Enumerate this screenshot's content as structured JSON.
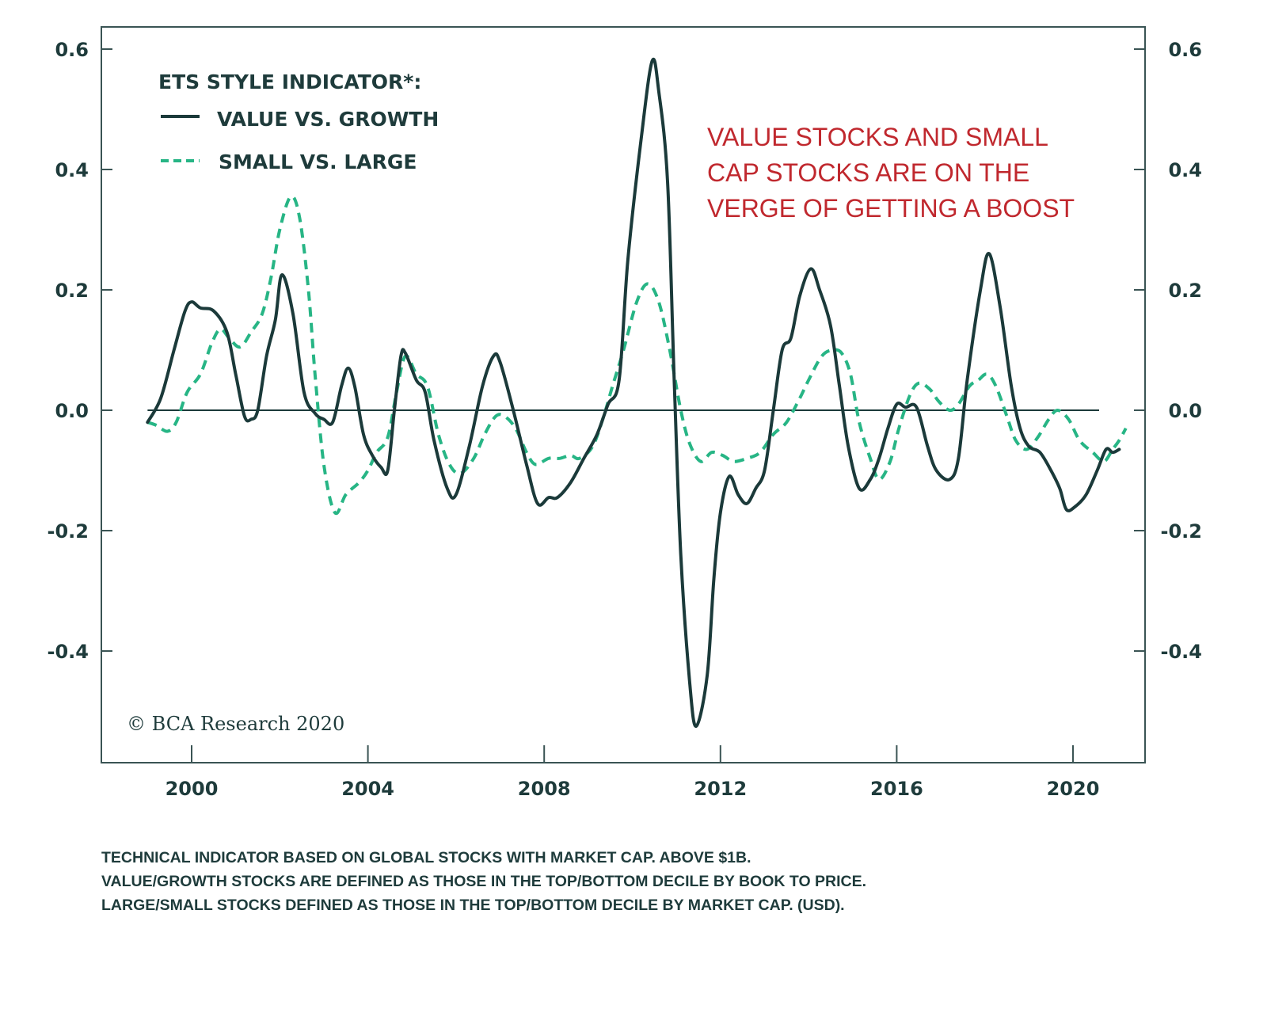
{
  "chart_data": {
    "type": "line",
    "title": "",
    "legend_title": "ETS STYLE INDICATOR*:",
    "legend_position": "top-left",
    "xlabel": "",
    "ylabel": "",
    "xlim": [
      1998.0,
      2021.7
    ],
    "ylim": [
      -0.56,
      0.64
    ],
    "x_ticks": [
      2000,
      2004,
      2008,
      2012,
      2016,
      2020
    ],
    "x_tick_labels": [
      "2000",
      "2004",
      "2008",
      "2012",
      "2016",
      "2020"
    ],
    "y_ticks": [
      0.6,
      0.4,
      0.2,
      0.0,
      -0.2,
      -0.4
    ],
    "y_tick_labels": [
      "0.6",
      "0.4",
      "0.2",
      "0.0",
      "-0.2",
      "-0.4"
    ],
    "y2_tick_labels": [
      "0.6",
      "0.4",
      "0.2",
      "0.0",
      "-0.2",
      "-0.4"
    ],
    "zero_line": true,
    "grid": false,
    "annotation": [
      "VALUE STOCKS AND SMALL",
      "CAP STOCKS ARE ON THE",
      "VERGE OF GETTING A BOOST"
    ],
    "copyright": "© BCA Research 2020",
    "series": [
      {
        "name": "VALUE VS. GROWTH",
        "style": "solid",
        "color": "#1b3a3a",
        "points": [
          [
            1999.0,
            -0.02
          ],
          [
            1999.3,
            0.02
          ],
          [
            1999.6,
            0.1
          ],
          [
            1999.85,
            0.165
          ],
          [
            2000.0,
            0.18
          ],
          [
            2000.2,
            0.17
          ],
          [
            2000.5,
            0.165
          ],
          [
            2000.8,
            0.13
          ],
          [
            2001.0,
            0.06
          ],
          [
            2001.2,
            -0.01
          ],
          [
            2001.35,
            -0.015
          ],
          [
            2001.5,
            0.0
          ],
          [
            2001.7,
            0.09
          ],
          [
            2001.9,
            0.15
          ],
          [
            2002.05,
            0.225
          ],
          [
            2002.3,
            0.16
          ],
          [
            2002.55,
            0.03
          ],
          [
            2002.8,
            -0.005
          ],
          [
            2003.0,
            -0.015
          ],
          [
            2003.2,
            -0.02
          ],
          [
            2003.4,
            0.04
          ],
          [
            2003.55,
            0.07
          ],
          [
            2003.7,
            0.04
          ],
          [
            2003.9,
            -0.04
          ],
          [
            2004.1,
            -0.075
          ],
          [
            2004.3,
            -0.095
          ],
          [
            2004.45,
            -0.1
          ],
          [
            2004.6,
            0.0
          ],
          [
            2004.75,
            0.09
          ],
          [
            2004.85,
            0.095
          ],
          [
            2005.1,
            0.05
          ],
          [
            2005.3,
            0.03
          ],
          [
            2005.5,
            -0.05
          ],
          [
            2005.8,
            -0.13
          ],
          [
            2006.0,
            -0.14
          ],
          [
            2006.3,
            -0.06
          ],
          [
            2006.6,
            0.04
          ],
          [
            2006.85,
            0.09
          ],
          [
            2007.0,
            0.08
          ],
          [
            2007.3,
            0.0
          ],
          [
            2007.6,
            -0.09
          ],
          [
            2007.85,
            -0.155
          ],
          [
            2008.1,
            -0.145
          ],
          [
            2008.3,
            -0.145
          ],
          [
            2008.6,
            -0.12
          ],
          [
            2008.9,
            -0.08
          ],
          [
            2009.2,
            -0.04
          ],
          [
            2009.45,
            0.01
          ],
          [
            2009.7,
            0.05
          ],
          [
            2009.9,
            0.25
          ],
          [
            2010.2,
            0.45
          ],
          [
            2010.45,
            0.58
          ],
          [
            2010.6,
            0.53
          ],
          [
            2010.8,
            0.38
          ],
          [
            2010.95,
            0.05
          ],
          [
            2011.1,
            -0.24
          ],
          [
            2011.3,
            -0.45
          ],
          [
            2011.45,
            -0.525
          ],
          [
            2011.7,
            -0.44
          ],
          [
            2011.85,
            -0.28
          ],
          [
            2012.0,
            -0.17
          ],
          [
            2012.2,
            -0.11
          ],
          [
            2012.4,
            -0.14
          ],
          [
            2012.6,
            -0.155
          ],
          [
            2012.8,
            -0.13
          ],
          [
            2013.0,
            -0.1
          ],
          [
            2013.2,
            0.0
          ],
          [
            2013.4,
            0.1
          ],
          [
            2013.6,
            0.12
          ],
          [
            2013.8,
            0.19
          ],
          [
            2014.05,
            0.235
          ],
          [
            2014.25,
            0.2
          ],
          [
            2014.5,
            0.14
          ],
          [
            2014.7,
            0.04
          ],
          [
            2014.9,
            -0.06
          ],
          [
            2015.15,
            -0.13
          ],
          [
            2015.4,
            -0.115
          ],
          [
            2015.6,
            -0.08
          ],
          [
            2015.8,
            -0.03
          ],
          [
            2016.0,
            0.01
          ],
          [
            2016.2,
            0.005
          ],
          [
            2016.45,
            0.005
          ],
          [
            2016.7,
            -0.06
          ],
          [
            2016.9,
            -0.1
          ],
          [
            2017.2,
            -0.115
          ],
          [
            2017.4,
            -0.08
          ],
          [
            2017.6,
            0.05
          ],
          [
            2017.9,
            0.2
          ],
          [
            2018.1,
            0.26
          ],
          [
            2018.35,
            0.17
          ],
          [
            2018.6,
            0.04
          ],
          [
            2018.8,
            -0.03
          ],
          [
            2019.0,
            -0.06
          ],
          [
            2019.25,
            -0.07
          ],
          [
            2019.5,
            -0.1
          ],
          [
            2019.7,
            -0.13
          ],
          [
            2019.85,
            -0.165
          ],
          [
            2020.05,
            -0.16
          ],
          [
            2020.3,
            -0.14
          ],
          [
            2020.55,
            -0.1
          ],
          [
            2020.75,
            -0.065
          ],
          [
            2020.9,
            -0.07
          ],
          [
            2021.05,
            -0.065
          ]
        ]
      },
      {
        "name": "SMALL VS. LARGE",
        "style": "dashed",
        "color": "#27b585",
        "points": [
          [
            1999.0,
            -0.02
          ],
          [
            1999.2,
            -0.025
          ],
          [
            1999.45,
            -0.035
          ],
          [
            1999.65,
            -0.02
          ],
          [
            1999.9,
            0.03
          ],
          [
            2000.2,
            0.06
          ],
          [
            2000.45,
            0.11
          ],
          [
            2000.65,
            0.135
          ],
          [
            2000.85,
            0.12
          ],
          [
            2001.1,
            0.105
          ],
          [
            2001.35,
            0.13
          ],
          [
            2001.6,
            0.16
          ],
          [
            2001.8,
            0.22
          ],
          [
            2002.0,
            0.3
          ],
          [
            2002.25,
            0.355
          ],
          [
            2002.45,
            0.32
          ],
          [
            2002.65,
            0.2
          ],
          [
            2002.8,
            0.06
          ],
          [
            2003.0,
            -0.09
          ],
          [
            2003.25,
            -0.17
          ],
          [
            2003.5,
            -0.14
          ],
          [
            2003.8,
            -0.12
          ],
          [
            2004.0,
            -0.1
          ],
          [
            2004.2,
            -0.07
          ],
          [
            2004.45,
            -0.045
          ],
          [
            2004.65,
            0.03
          ],
          [
            2004.85,
            0.09
          ],
          [
            2005.1,
            0.06
          ],
          [
            2005.35,
            0.04
          ],
          [
            2005.6,
            -0.04
          ],
          [
            2005.85,
            -0.09
          ],
          [
            2006.1,
            -0.105
          ],
          [
            2006.4,
            -0.08
          ],
          [
            2006.65,
            -0.04
          ],
          [
            2006.9,
            -0.01
          ],
          [
            2007.1,
            -0.01
          ],
          [
            2007.35,
            -0.03
          ],
          [
            2007.6,
            -0.07
          ],
          [
            2007.8,
            -0.09
          ],
          [
            2008.1,
            -0.08
          ],
          [
            2008.35,
            -0.08
          ],
          [
            2008.6,
            -0.075
          ],
          [
            2008.8,
            -0.08
          ],
          [
            2009.1,
            -0.06
          ],
          [
            2009.35,
            -0.01
          ],
          [
            2009.55,
            0.04
          ],
          [
            2009.8,
            0.1
          ],
          [
            2010.1,
            0.18
          ],
          [
            2010.35,
            0.21
          ],
          [
            2010.6,
            0.18
          ],
          [
            2010.85,
            0.1
          ],
          [
            2011.1,
            0.0
          ],
          [
            2011.3,
            -0.055
          ],
          [
            2011.55,
            -0.085
          ],
          [
            2011.8,
            -0.07
          ],
          [
            2012.05,
            -0.075
          ],
          [
            2012.3,
            -0.085
          ],
          [
            2012.6,
            -0.08
          ],
          [
            2012.9,
            -0.07
          ],
          [
            2013.2,
            -0.04
          ],
          [
            2013.5,
            -0.02
          ],
          [
            2013.8,
            0.02
          ],
          [
            2014.0,
            0.05
          ],
          [
            2014.3,
            0.09
          ],
          [
            2014.55,
            0.1
          ],
          [
            2014.75,
            0.095
          ],
          [
            2014.95,
            0.06
          ],
          [
            2015.15,
            -0.02
          ],
          [
            2015.4,
            -0.08
          ],
          [
            2015.6,
            -0.115
          ],
          [
            2015.85,
            -0.085
          ],
          [
            2016.05,
            -0.03
          ],
          [
            2016.3,
            0.025
          ],
          [
            2016.5,
            0.045
          ],
          [
            2016.75,
            0.035
          ],
          [
            2016.95,
            0.015
          ],
          [
            2017.2,
            0.0
          ],
          [
            2017.4,
            0.01
          ],
          [
            2017.65,
            0.04
          ],
          [
            2017.85,
            0.05
          ],
          [
            2018.05,
            0.06
          ],
          [
            2018.25,
            0.04
          ],
          [
            2018.5,
            -0.01
          ],
          [
            2018.7,
            -0.05
          ],
          [
            2018.95,
            -0.065
          ],
          [
            2019.2,
            -0.045
          ],
          [
            2019.45,
            -0.015
          ],
          [
            2019.65,
            0.0
          ],
          [
            2019.9,
            -0.015
          ],
          [
            2020.15,
            -0.05
          ],
          [
            2020.45,
            -0.07
          ],
          [
            2020.7,
            -0.085
          ],
          [
            2020.9,
            -0.065
          ],
          [
            2021.05,
            -0.05
          ],
          [
            2021.2,
            -0.03
          ]
        ]
      }
    ]
  },
  "footnote": [
    "TECHNICAL INDICATOR BASED ON GLOBAL STOCKS WITH MARKET CAP. ABOVE $1B.",
    "VALUE/GROWTH STOCKS ARE DEFINED AS THOSE IN THE TOP/BOTTOM DECILE BY BOOK TO PRICE.",
    "LARGE/SMALL STOCKS DEFINED AS THOSE IN THE TOP/BOTTOM DECILE BY MARKET CAP. (USD)."
  ]
}
